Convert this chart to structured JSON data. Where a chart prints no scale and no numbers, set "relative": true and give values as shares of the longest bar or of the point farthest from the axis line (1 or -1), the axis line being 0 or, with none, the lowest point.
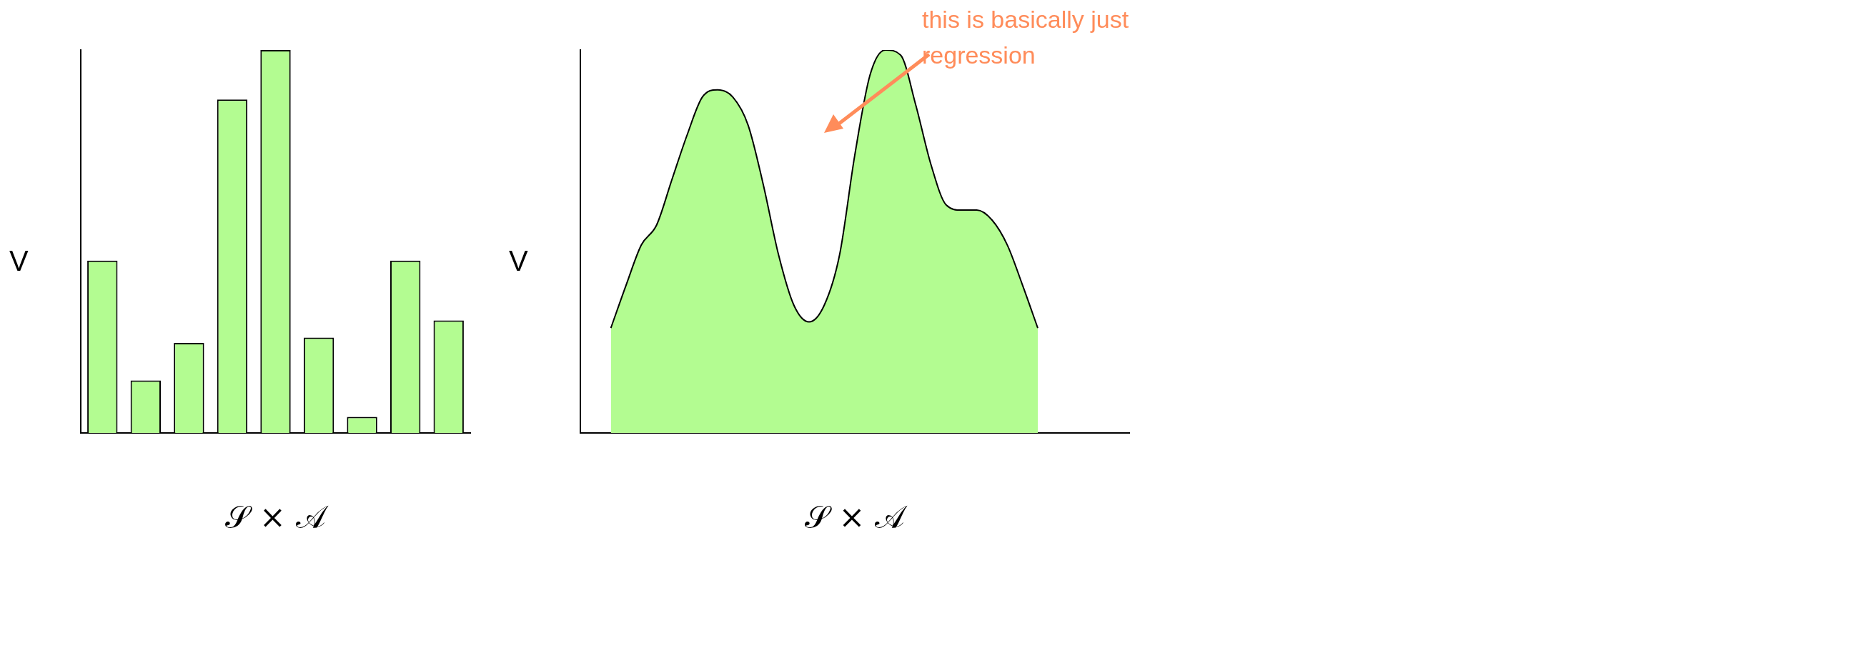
{
  "chart_data": [
    {
      "type": "bar",
      "relative": true,
      "categories": [
        null,
        null,
        null,
        null,
        null,
        null,
        null,
        null,
        null
      ],
      "values": [
        0.45,
        0.137,
        0.235,
        0.871,
        1,
        0.249,
        0.042,
        0.45,
        0.294
      ],
      "color": "#b3fc91",
      "xlabel": "𝒮 × 𝒜",
      "ylabel": "V"
    },
    {
      "type": "area",
      "relative": true,
      "categories": [
        null,
        null,
        null,
        null,
        null,
        null,
        null,
        null,
        null,
        null,
        null,
        null,
        null,
        null,
        null,
        null,
        null,
        null,
        null,
        null,
        null,
        null,
        null,
        null,
        null,
        null,
        null,
        null,
        null,
        null,
        null,
        null,
        null,
        null,
        null,
        null,
        null
      ],
      "values": [
        null,
        null,
        0.274,
        0.386,
        0.491,
        0.543,
        0.661,
        0.778,
        0.877,
        0.896,
        0.877,
        0.804,
        0.648,
        0.465,
        0.334,
        0.29,
        0.334,
        0.465,
        0.726,
        0.935,
        1,
        0.987,
        0.856,
        0.7,
        0.595,
        0.582,
        0.582,
        0.556,
        0.491,
        0.386,
        0.274,
        null,
        null,
        null,
        null,
        null,
        null
      ],
      "color": "#b3fc91",
      "xlabel": "𝒮 × 𝒜",
      "ylabel": "V",
      "annotations": [
        "this is basically just regression"
      ]
    }
  ]
}
